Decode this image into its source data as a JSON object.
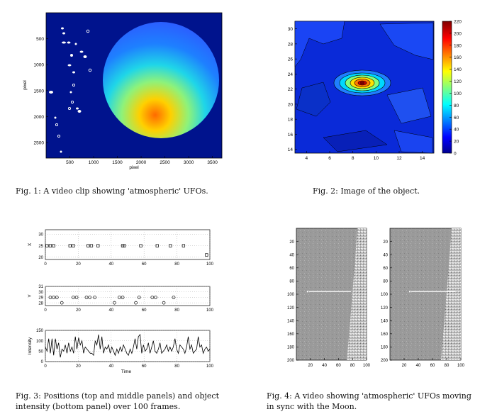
{
  "figures": [
    {
      "caption": "Fig. 1: A video clip showing 'atmospheric' UFOs.",
      "chart_data": {
        "type": "heatmap",
        "xlabel": "pixel",
        "ylabel": "pixel",
        "xticks": [
          "500",
          "1000",
          "1500",
          "2000",
          "2500",
          "3000",
          "3500"
        ],
        "yticks": [
          "500",
          "1000",
          "1500",
          "2000",
          "2500"
        ],
        "xlim": [
          0,
          3700
        ],
        "ylim": [
          0,
          2800
        ],
        "colormap": "jet",
        "background_color": "#00108c"
      }
    },
    {
      "caption": "Fig. 2: Image of the object.",
      "chart_data": {
        "type": "heatmap",
        "subtype": "filled-contour",
        "xticks": [
          "4",
          "6",
          "8",
          "10",
          "12",
          "14"
        ],
        "yticks": [
          "14",
          "16",
          "18",
          "20",
          "22",
          "24",
          "26",
          "28",
          "30"
        ],
        "xlim": [
          3,
          15
        ],
        "ylim": [
          13.5,
          31
        ],
        "peak": {
          "x": 9,
          "y": 22.8,
          "value": 220
        },
        "colorbar": {
          "min": 0,
          "max": 220,
          "ticks": [
            "220",
            "200",
            "180",
            "160",
            "140",
            "120",
            "100",
            "80",
            "60",
            "40",
            "20",
            "0"
          ]
        },
        "colormap": "jet"
      }
    },
    {
      "caption": "Fig. 3: Positions (top and middle panels) and object intensity (bottom panel) over 100 frames.",
      "chart_data": [
        {
          "type": "scatter",
          "ylabel": "X",
          "marker": "square",
          "ylim": [
            19,
            32
          ],
          "xlim": [
            0,
            100
          ],
          "yticks": [
            "20",
            "25",
            "30"
          ],
          "xticks": [
            "0",
            "20",
            "40",
            "60",
            "80",
            "100"
          ],
          "points": [
            [
              1,
              25
            ],
            [
              3,
              25
            ],
            [
              5,
              25
            ],
            [
              15,
              25
            ],
            [
              17,
              25
            ],
            [
              26,
              25
            ],
            [
              28,
              25
            ],
            [
              32,
              25
            ],
            [
              47,
              25
            ],
            [
              48,
              25
            ],
            [
              58,
              25
            ],
            [
              68,
              25
            ],
            [
              76,
              25
            ],
            [
              84,
              25
            ],
            [
              98,
              21
            ]
          ]
        },
        {
          "type": "scatter",
          "ylabel": "Y",
          "marker": "circle",
          "ylim": [
            27.5,
            31
          ],
          "xlim": [
            0,
            100
          ],
          "yticks": [
            "28",
            "29",
            "30",
            "31"
          ],
          "xticks": [
            "0",
            "20",
            "40",
            "60",
            "80",
            "100"
          ],
          "points": [
            [
              3,
              29
            ],
            [
              5,
              29
            ],
            [
              7,
              29
            ],
            [
              10,
              28
            ],
            [
              17,
              29
            ],
            [
              19,
              29
            ],
            [
              25,
              29
            ],
            [
              27,
              29
            ],
            [
              30,
              29
            ],
            [
              42,
              28
            ],
            [
              45,
              29
            ],
            [
              47,
              29
            ],
            [
              55,
              28
            ],
            [
              57,
              29
            ],
            [
              65,
              29
            ],
            [
              67,
              29
            ],
            [
              72,
              28
            ],
            [
              78,
              29
            ]
          ]
        },
        {
          "type": "line",
          "ylabel": "Intensity",
          "xlabel": "Time",
          "ylim": [
            0,
            150
          ],
          "xlim": [
            0,
            100
          ],
          "yticks": [
            "0",
            "50",
            "100",
            "150"
          ],
          "xticks": [
            "0",
            "20",
            "40",
            "60",
            "80",
            "100"
          ],
          "values": [
            70,
            50,
            110,
            40,
            110,
            30,
            110,
            60,
            90,
            20,
            60,
            50,
            80,
            40,
            90,
            50,
            70,
            40,
            120,
            60,
            115,
            80,
            100,
            40,
            70,
            60,
            50,
            40,
            40,
            30,
            100,
            80,
            130,
            60,
            120,
            40,
            70,
            60,
            80,
            40,
            70,
            50,
            30,
            60,
            40,
            70,
            50,
            80,
            60,
            40,
            30,
            60,
            40,
            70,
            110,
            60,
            120,
            130,
            40,
            80,
            50,
            60,
            90,
            40,
            70,
            100,
            50,
            40,
            60,
            90,
            40,
            50,
            60,
            80,
            50,
            70,
            50,
            70,
            110,
            60,
            40,
            80,
            70,
            60,
            40,
            70,
            120,
            60,
            80,
            40,
            50,
            60,
            120,
            70,
            80,
            40,
            60,
            70,
            50,
            60
          ]
        }
      ]
    },
    {
      "caption": "Fig. 4: A video showing 'atmospheric' UFOs moving in sync with the Moon.",
      "chart_data": [
        {
          "type": "heatmap",
          "colormap": "gray",
          "xticks": [
            "20",
            "40",
            "60",
            "80",
            "100"
          ],
          "yticks": [
            "20",
            "40",
            "60",
            "80",
            "100",
            "120",
            "140",
            "160",
            "180",
            "200"
          ],
          "xlim": [
            0,
            100
          ],
          "ylim": [
            0,
            200
          ],
          "track": {
            "from": [
              18,
              96
            ],
            "to": [
              78,
              96
            ]
          }
        },
        {
          "type": "heatmap",
          "colormap": "gray",
          "xticks": [
            "20",
            "40",
            "60",
            "80",
            "100"
          ],
          "yticks": [
            "20",
            "40",
            "60",
            "80",
            "100",
            "120",
            "140",
            "160",
            "180",
            "200"
          ],
          "xlim": [
            0,
            100
          ],
          "ylim": [
            0,
            200
          ],
          "track": {
            "from": [
              30,
              96
            ],
            "to": [
              92,
              96
            ]
          }
        }
      ]
    }
  ]
}
